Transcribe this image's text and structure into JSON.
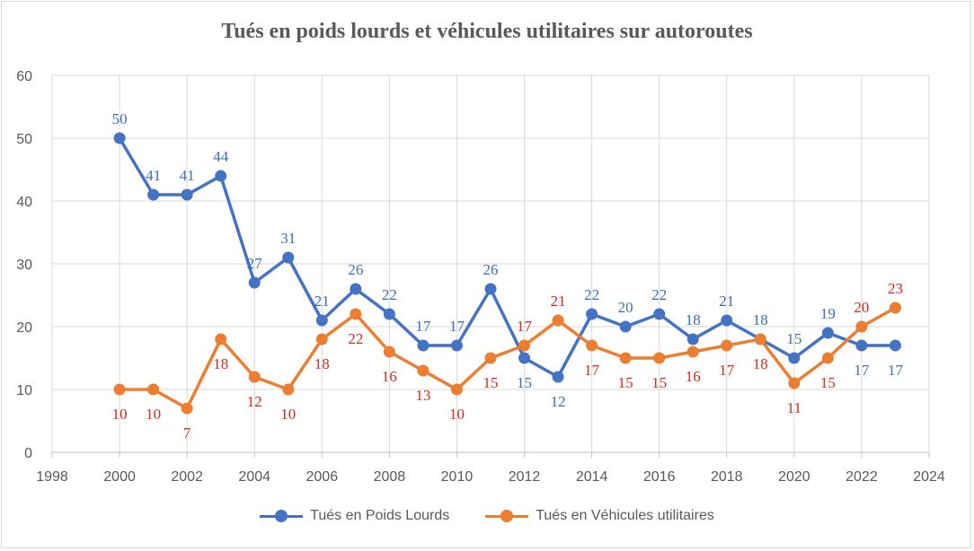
{
  "chart_data": {
    "type": "line",
    "title": "Tués en poids lourds et véhicules utilitaires sur autoroutes",
    "xlabel": "",
    "ylabel": "",
    "xlim": [
      1998,
      2024
    ],
    "ylim": [
      0,
      60
    ],
    "x_ticks": [
      1998,
      2000,
      2002,
      2004,
      2006,
      2008,
      2010,
      2012,
      2014,
      2016,
      2018,
      2020,
      2022,
      2024
    ],
    "y_ticks": [
      0,
      10,
      20,
      30,
      40,
      50,
      60
    ],
    "grid": true,
    "legend_position": "bottom",
    "x": [
      2000,
      2001,
      2002,
      2003,
      2004,
      2005,
      2006,
      2007,
      2008,
      2009,
      2010,
      2011,
      2012,
      2013,
      2014,
      2015,
      2016,
      2017,
      2018,
      2019,
      2020,
      2021,
      2022,
      2023
    ],
    "series": [
      {
        "name": "Tués en Poids Lourds",
        "color": "#4472c4",
        "label_color": "#3b6db5",
        "values": [
          50,
          41,
          41,
          44,
          27,
          31,
          21,
          26,
          22,
          17,
          17,
          26,
          15,
          12,
          22,
          20,
          22,
          18,
          21,
          18,
          15,
          19,
          17,
          17
        ]
      },
      {
        "name": "Tués en Véhicules utilitaires",
        "color": "#ed7d31",
        "label_color": "#d42a1f",
        "values": [
          10,
          10,
          7,
          18,
          12,
          10,
          18,
          22,
          16,
          13,
          10,
          15,
          17,
          21,
          17,
          15,
          15,
          16,
          17,
          18,
          11,
          15,
          20,
          23
        ]
      }
    ]
  }
}
